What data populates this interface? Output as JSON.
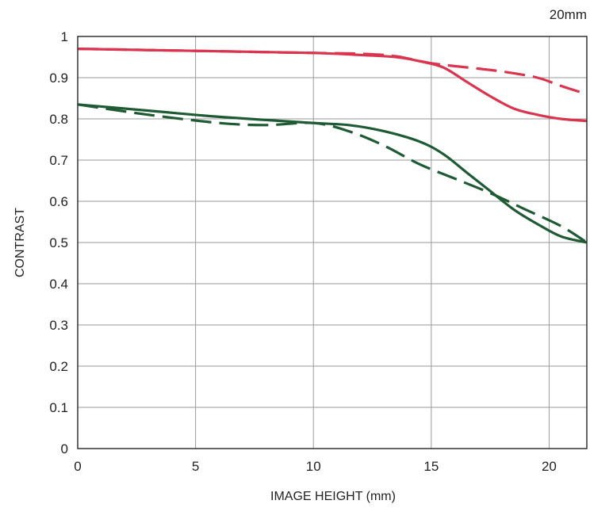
{
  "chart_data": {
    "type": "line",
    "title": "20mm",
    "xlabel": "IMAGE HEIGHT (mm)",
    "ylabel": "CONTRAST",
    "xlim": [
      0,
      21.6
    ],
    "ylim": [
      0,
      1
    ],
    "xticks": [
      0,
      5,
      10,
      15,
      20
    ],
    "yticks": [
      0,
      0.1,
      0.2,
      0.3,
      0.4,
      0.5,
      0.6,
      0.7,
      0.8,
      0.9,
      1
    ],
    "ytick_labels": [
      "0",
      "0.1",
      "0.2",
      "0.3",
      "0.4",
      "0.5",
      "0.6",
      "0.7",
      "0.8",
      "0.9",
      "1"
    ],
    "grid": true,
    "series": [
      {
        "color": "#d9354f",
        "style": "solid",
        "points": [
          [
            0,
            0.97
          ],
          [
            5,
            0.965
          ],
          [
            10,
            0.96
          ],
          [
            12,
            0.955
          ],
          [
            13.5,
            0.95
          ],
          [
            14.5,
            0.94
          ],
          [
            15.5,
            0.925
          ],
          [
            16.5,
            0.89
          ],
          [
            17.5,
            0.855
          ],
          [
            18.5,
            0.825
          ],
          [
            19.5,
            0.81
          ],
          [
            20.5,
            0.8
          ],
          [
            21.6,
            0.795
          ]
        ]
      },
      {
        "color": "#d9354f",
        "style": "dashed",
        "points": [
          [
            0,
            0.97
          ],
          [
            5,
            0.965
          ],
          [
            10,
            0.96
          ],
          [
            12,
            0.958
          ],
          [
            13.5,
            0.952
          ],
          [
            15,
            0.935
          ],
          [
            16.5,
            0.925
          ],
          [
            18,
            0.915
          ],
          [
            19.5,
            0.9
          ],
          [
            20.5,
            0.88
          ],
          [
            21.6,
            0.86
          ]
        ]
      },
      {
        "color": "#1e5b34",
        "style": "solid",
        "points": [
          [
            0,
            0.835
          ],
          [
            3,
            0.82
          ],
          [
            6,
            0.805
          ],
          [
            10,
            0.79
          ],
          [
            11.5,
            0.785
          ],
          [
            13,
            0.77
          ],
          [
            14.5,
            0.745
          ],
          [
            15.5,
            0.715
          ],
          [
            16.5,
            0.67
          ],
          [
            17.5,
            0.625
          ],
          [
            18.5,
            0.58
          ],
          [
            19.5,
            0.545
          ],
          [
            20.5,
            0.515
          ],
          [
            21.6,
            0.5
          ]
        ]
      },
      {
        "color": "#1e5b34",
        "style": "dashed",
        "points": [
          [
            0,
            0.835
          ],
          [
            3,
            0.81
          ],
          [
            6,
            0.79
          ],
          [
            8,
            0.785
          ],
          [
            10,
            0.79
          ],
          [
            11.5,
            0.77
          ],
          [
            13,
            0.735
          ],
          [
            14.5,
            0.69
          ],
          [
            16,
            0.655
          ],
          [
            17.5,
            0.62
          ],
          [
            19,
            0.58
          ],
          [
            20.5,
            0.54
          ],
          [
            21.6,
            0.5
          ]
        ]
      }
    ]
  }
}
